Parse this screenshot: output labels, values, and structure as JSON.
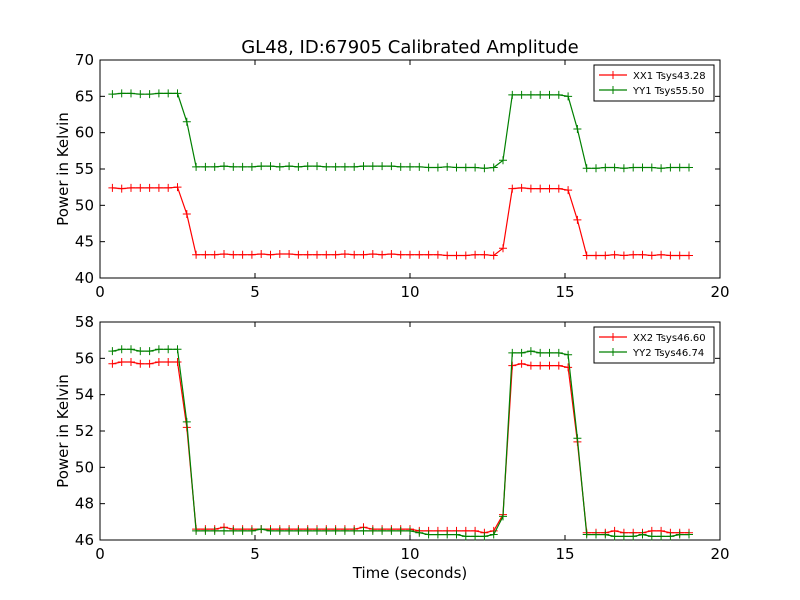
{
  "chart_data": [
    {
      "type": "line",
      "title": "GL48, ID:67905 Calibrated Amplitude",
      "xlabel": "",
      "ylabel": "Power in Kelvin",
      "xlim": [
        0,
        20
      ],
      "ylim": [
        40,
        70
      ],
      "xticks": [
        0,
        5,
        10,
        15,
        20
      ],
      "yticks": [
        40,
        45,
        50,
        55,
        60,
        65,
        70
      ],
      "legend_position": "top-right",
      "series": [
        {
          "name": "XX1 Tsys43.28",
          "color": "#ff0000",
          "x": [
            0.4,
            0.7,
            1.0,
            1.3,
            1.6,
            1.9,
            2.2,
            2.5,
            2.8,
            3.1,
            3.4,
            3.7,
            4.0,
            4.3,
            4.6,
            4.9,
            5.2,
            5.5,
            5.8,
            6.1,
            6.4,
            6.7,
            7.0,
            7.3,
            7.6,
            7.9,
            8.2,
            8.5,
            8.8,
            9.1,
            9.4,
            9.7,
            10.0,
            10.3,
            10.6,
            10.9,
            11.2,
            11.5,
            11.8,
            12.1,
            12.4,
            12.7,
            13.0,
            13.3,
            13.6,
            13.9,
            14.2,
            14.5,
            14.8,
            15.1,
            15.4,
            15.7,
            16.0,
            16.3,
            16.6,
            16.9,
            17.2,
            17.5,
            17.8,
            18.1,
            18.4,
            18.7,
            19.0
          ],
          "values": [
            52.4,
            52.3,
            52.4,
            52.4,
            52.4,
            52.4,
            52.4,
            52.5,
            48.8,
            43.2,
            43.2,
            43.2,
            43.3,
            43.2,
            43.2,
            43.2,
            43.3,
            43.2,
            43.3,
            43.3,
            43.2,
            43.2,
            43.2,
            43.2,
            43.2,
            43.3,
            43.2,
            43.2,
            43.3,
            43.2,
            43.3,
            43.2,
            43.2,
            43.2,
            43.2,
            43.2,
            43.1,
            43.1,
            43.1,
            43.2,
            43.2,
            43.1,
            44.1,
            52.3,
            52.4,
            52.3,
            52.3,
            52.3,
            52.3,
            52.1,
            48.0,
            43.1,
            43.1,
            43.1,
            43.2,
            43.1,
            43.2,
            43.2,
            43.1,
            43.2,
            43.1,
            43.1,
            43.1
          ]
        },
        {
          "name": "YY1 Tsys55.50",
          "color": "#008000",
          "x": [
            0.4,
            0.7,
            1.0,
            1.3,
            1.6,
            1.9,
            2.2,
            2.5,
            2.8,
            3.1,
            3.4,
            3.7,
            4.0,
            4.3,
            4.6,
            4.9,
            5.2,
            5.5,
            5.8,
            6.1,
            6.4,
            6.7,
            7.0,
            7.3,
            7.6,
            7.9,
            8.2,
            8.5,
            8.8,
            9.1,
            9.4,
            9.7,
            10.0,
            10.3,
            10.6,
            10.9,
            11.2,
            11.5,
            11.8,
            12.1,
            12.4,
            12.7,
            13.0,
            13.3,
            13.6,
            13.9,
            14.2,
            14.5,
            14.8,
            15.1,
            15.4,
            15.7,
            16.0,
            16.3,
            16.6,
            16.9,
            17.2,
            17.5,
            17.8,
            18.1,
            18.4,
            18.7,
            19.0
          ],
          "values": [
            65.3,
            65.4,
            65.4,
            65.3,
            65.3,
            65.4,
            65.4,
            65.4,
            61.5,
            55.3,
            55.3,
            55.3,
            55.4,
            55.3,
            55.3,
            55.3,
            55.4,
            55.4,
            55.3,
            55.4,
            55.3,
            55.4,
            55.4,
            55.3,
            55.3,
            55.3,
            55.3,
            55.4,
            55.4,
            55.4,
            55.4,
            55.3,
            55.3,
            55.3,
            55.2,
            55.2,
            55.3,
            55.2,
            55.2,
            55.2,
            55.1,
            55.2,
            56.2,
            65.2,
            65.2,
            65.2,
            65.2,
            65.2,
            65.2,
            65.0,
            60.5,
            55.1,
            55.1,
            55.2,
            55.2,
            55.1,
            55.2,
            55.2,
            55.2,
            55.1,
            55.2,
            55.2,
            55.2
          ]
        }
      ]
    },
    {
      "type": "line",
      "title": "",
      "xlabel": "Time (seconds)",
      "ylabel": "Power in Kelvin",
      "xlim": [
        0,
        20
      ],
      "ylim": [
        46,
        58
      ],
      "xticks": [
        0,
        5,
        10,
        15,
        20
      ],
      "yticks": [
        46,
        48,
        50,
        52,
        54,
        56,
        58
      ],
      "legend_position": "top-right",
      "series": [
        {
          "name": "XX2 Tsys46.60",
          "color": "#ff0000",
          "x": [
            0.4,
            0.7,
            1.0,
            1.3,
            1.6,
            1.9,
            2.2,
            2.5,
            2.8,
            3.1,
            3.4,
            3.7,
            4.0,
            4.3,
            4.6,
            4.9,
            5.2,
            5.5,
            5.8,
            6.1,
            6.4,
            6.7,
            7.0,
            7.3,
            7.6,
            7.9,
            8.2,
            8.5,
            8.8,
            9.1,
            9.4,
            9.7,
            10.0,
            10.3,
            10.6,
            10.9,
            11.2,
            11.5,
            11.8,
            12.1,
            12.4,
            12.7,
            13.0,
            13.3,
            13.6,
            13.9,
            14.2,
            14.5,
            14.8,
            15.1,
            15.4,
            15.7,
            16.0,
            16.3,
            16.6,
            16.9,
            17.2,
            17.5,
            17.8,
            18.1,
            18.4,
            18.7,
            19.0
          ],
          "values": [
            55.7,
            55.8,
            55.8,
            55.7,
            55.7,
            55.8,
            55.8,
            55.8,
            52.2,
            46.6,
            46.6,
            46.6,
            46.7,
            46.6,
            46.6,
            46.6,
            46.6,
            46.6,
            46.6,
            46.6,
            46.6,
            46.6,
            46.6,
            46.6,
            46.6,
            46.6,
            46.6,
            46.7,
            46.6,
            46.6,
            46.6,
            46.6,
            46.6,
            46.5,
            46.5,
            46.5,
            46.5,
            46.5,
            46.5,
            46.5,
            46.4,
            46.5,
            47.4,
            55.6,
            55.7,
            55.6,
            55.6,
            55.6,
            55.6,
            55.5,
            51.4,
            46.4,
            46.4,
            46.4,
            46.5,
            46.4,
            46.4,
            46.4,
            46.5,
            46.5,
            46.4,
            46.4,
            46.4
          ]
        },
        {
          "name": "YY2 Tsys46.74",
          "color": "#008000",
          "x": [
            0.4,
            0.7,
            1.0,
            1.3,
            1.6,
            1.9,
            2.2,
            2.5,
            2.8,
            3.1,
            3.4,
            3.7,
            4.0,
            4.3,
            4.6,
            4.9,
            5.2,
            5.5,
            5.8,
            6.1,
            6.4,
            6.7,
            7.0,
            7.3,
            7.6,
            7.9,
            8.2,
            8.5,
            8.8,
            9.1,
            9.4,
            9.7,
            10.0,
            10.3,
            10.6,
            10.9,
            11.2,
            11.5,
            11.8,
            12.1,
            12.4,
            12.7,
            13.0,
            13.3,
            13.6,
            13.9,
            14.2,
            14.5,
            14.8,
            15.1,
            15.4,
            15.7,
            16.0,
            16.3,
            16.6,
            16.9,
            17.2,
            17.5,
            17.8,
            18.1,
            18.4,
            18.7,
            19.0
          ],
          "values": [
            56.4,
            56.5,
            56.5,
            56.4,
            56.4,
            56.5,
            56.5,
            56.5,
            52.5,
            46.5,
            46.5,
            46.5,
            46.5,
            46.5,
            46.5,
            46.5,
            46.6,
            46.5,
            46.5,
            46.5,
            46.5,
            46.5,
            46.5,
            46.5,
            46.5,
            46.5,
            46.5,
            46.5,
            46.5,
            46.5,
            46.5,
            46.5,
            46.5,
            46.4,
            46.3,
            46.3,
            46.3,
            46.3,
            46.2,
            46.2,
            46.2,
            46.3,
            47.3,
            56.3,
            56.3,
            56.4,
            56.3,
            56.3,
            56.3,
            56.2,
            51.6,
            46.3,
            46.3,
            46.3,
            46.2,
            46.2,
            46.2,
            46.3,
            46.2,
            46.2,
            46.2,
            46.3,
            46.3
          ]
        }
      ]
    }
  ]
}
